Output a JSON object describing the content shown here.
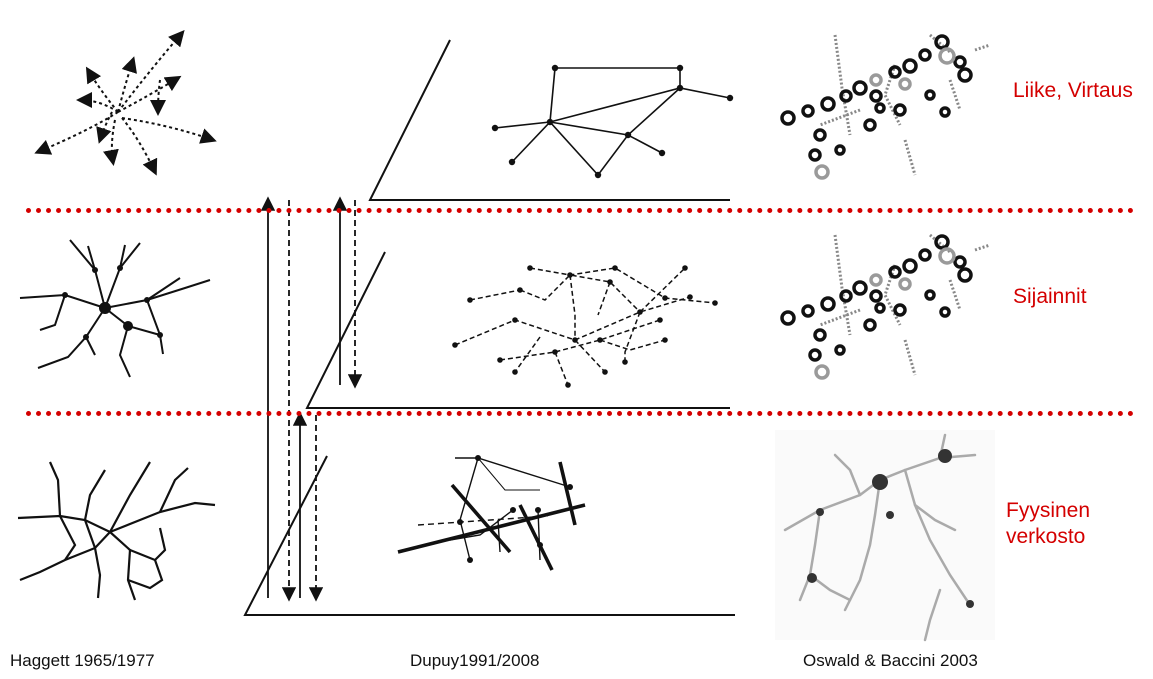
{
  "diagram": {
    "layers": [
      {
        "label": "Liike, Virtaus"
      },
      {
        "label": "Sijainnit"
      },
      {
        "label": "Fyysinen\nverkosto"
      }
    ],
    "captions": {
      "left": "Haggett 1965/1977",
      "center": "Dupuy1991/2008",
      "right": "Oswald & Baccini 2003"
    },
    "colors": {
      "accent": "#d40000",
      "ink": "#111111",
      "grey": "#9a9a9a"
    }
  }
}
